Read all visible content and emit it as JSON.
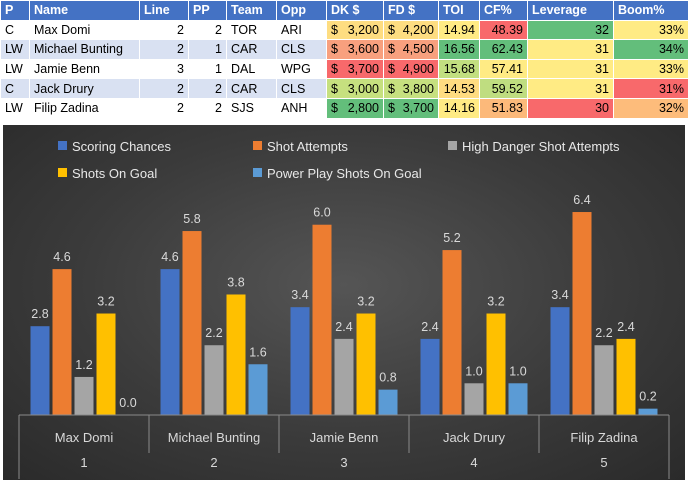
{
  "table": {
    "headers": [
      "P",
      "Name",
      "Line",
      "PP",
      "Team",
      "Opp",
      "DK $",
      "FD $",
      "TOI",
      "CF%",
      "Leverage",
      "Boom%"
    ],
    "rows": [
      {
        "P": "C",
        "Name": "Max Domi",
        "Line": "2",
        "PP": "2",
        "Team": "TOR",
        "Opp": "ARI",
        "DK": [
          "$",
          "3,200"
        ],
        "FD": [
          "$",
          "4,200"
        ],
        "TOI": "14.94",
        "CF": "48.39",
        "Leverage": "32",
        "Boom": "33%"
      },
      {
        "P": "LW",
        "Name": "Michael Bunting",
        "Line": "2",
        "PP": "1",
        "Team": "CAR",
        "Opp": "CLS",
        "DK": [
          "$",
          "3,600"
        ],
        "FD": [
          "$",
          "4,500"
        ],
        "TOI": "16.56",
        "CF": "62.43",
        "Leverage": "31",
        "Boom": "34%"
      },
      {
        "P": "LW",
        "Name": "Jamie Benn",
        "Line": "3",
        "PP": "1",
        "Team": "DAL",
        "Opp": "WPG",
        "DK": [
          "$",
          "3,700"
        ],
        "FD": [
          "$",
          "4,900"
        ],
        "TOI": "15.68",
        "CF": "57.41",
        "Leverage": "31",
        "Boom": "33%"
      },
      {
        "P": "C",
        "Name": "Jack Drury",
        "Line": "2",
        "PP": "2",
        "Team": "CAR",
        "Opp": "CLS",
        "DK": [
          "$",
          "3,000"
        ],
        "FD": [
          "$",
          "3,800"
        ],
        "TOI": "14.53",
        "CF": "59.52",
        "Leverage": "31",
        "Boom": "31%"
      },
      {
        "P": "LW",
        "Name": "Filip Zadina",
        "Line": "2",
        "PP": "2",
        "Team": "SJS",
        "Opp": "ANH",
        "DK": [
          "$",
          "2,800"
        ],
        "FD": [
          "$",
          "3,700"
        ],
        "TOI": "14.16",
        "CF": "51.83",
        "Leverage": "30",
        "Boom": "32%"
      }
    ],
    "cell_colors": {
      "DK": [
        "#fedd81",
        "#f8a07e",
        "#f8696b",
        "#c6e07f",
        "#63be7b"
      ],
      "FD": [
        "#fedd81",
        "#f8a07e",
        "#f8696b",
        "#c6e07f",
        "#63be7b"
      ],
      "TOI": [
        "#ffeb84",
        "#63be7b",
        "#c2df80",
        "#ffdc81",
        "#ffeb84"
      ],
      "CF": [
        "#f8696b",
        "#63be7b",
        "#ffeb84",
        "#bfdd80",
        "#fcb97a"
      ],
      "Leverage": [
        "#63be7b",
        "#ffeb84",
        "#ffeb84",
        "#ffeb84",
        "#f8696b"
      ],
      "Boom": [
        "#ffeb84",
        "#63be7b",
        "#ffeb84",
        "#f8696b",
        "#fdbc7b"
      ]
    }
  },
  "chart_data": {
    "type": "bar",
    "categories": [
      "Max Domi",
      "Michael Bunting",
      "Jamie Benn",
      "Jack Drury",
      "Filip Zadina"
    ],
    "category_numbers": [
      "1",
      "2",
      "3",
      "4",
      "5"
    ],
    "series": [
      {
        "name": "Scoring Chances",
        "values": [
          2.8,
          4.6,
          3.4,
          2.4,
          3.4
        ],
        "color": "#4472c4"
      },
      {
        "name": "Shot Attempts",
        "values": [
          4.6,
          5.8,
          6.0,
          5.2,
          6.4
        ],
        "color": "#ed7d31"
      },
      {
        "name": "High Danger Shot Attempts",
        "values": [
          1.2,
          2.2,
          2.4,
          1.0,
          2.2
        ],
        "color": "#a5a5a5"
      },
      {
        "name": "Shots On Goal",
        "values": [
          3.2,
          3.8,
          3.2,
          3.2,
          2.4
        ],
        "color": "#ffc000"
      },
      {
        "name": "Power Play Shots On Goal",
        "values": [
          0.0,
          1.6,
          0.8,
          1.0,
          0.2
        ],
        "color": "#5b9bd5"
      }
    ],
    "ylim": [
      0,
      7
    ],
    "legend_position": "top",
    "grid": false
  }
}
